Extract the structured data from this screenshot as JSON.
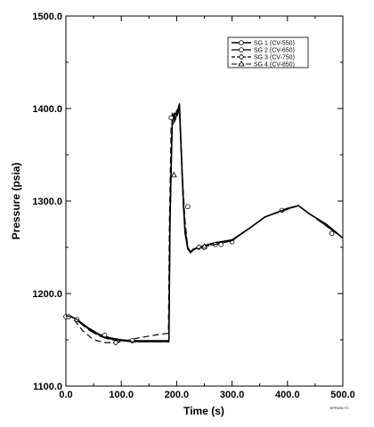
{
  "chart_data": {
    "type": "line",
    "xlabel": "Time (s)",
    "ylabel": "Pressure (psia)",
    "xlim": [
      0,
      500
    ],
    "ylim": [
      1100,
      1500
    ],
    "xticks": [
      "0.0",
      "100.0",
      "200.0",
      "300.0",
      "400.0",
      "500.0"
    ],
    "xtick_values": [
      0,
      100,
      200,
      300,
      400,
      500
    ],
    "yticks": [
      "1100.0",
      "1200.0",
      "1300.0",
      "1400.0",
      "1500.0"
    ],
    "ytick_values": [
      1100,
      1200,
      1300,
      1400,
      1500
    ],
    "grid": false,
    "legend_position": "top-right",
    "figure_id": "EPRI/98 TC",
    "series": [
      {
        "name": "SG 1 (CV-550)",
        "line_style": "solid",
        "line_width": 1.6,
        "marker": "circle",
        "x": [
          0,
          10,
          20,
          40,
          60,
          80,
          100,
          120,
          150,
          170,
          186,
          188,
          192,
          196,
          200,
          205,
          210,
          212,
          215,
          220,
          225,
          230,
          240,
          250,
          270,
          300,
          330,
          360,
          400,
          420,
          440,
          470,
          500
        ],
        "y": [
          1175,
          1175,
          1172,
          1163,
          1156,
          1152,
          1150,
          1149,
          1149,
          1149,
          1149,
          1280,
          1385,
          1395,
          1393,
          1405,
          1330,
          1300,
          1270,
          1250,
          1245,
          1248,
          1250,
          1252,
          1255,
          1258,
          1270,
          1283,
          1292,
          1295,
          1286,
          1275,
          1260
        ],
        "markers_x": [
          0,
          20,
          70,
          120,
          220,
          250,
          280,
          300,
          390,
          480
        ],
        "markers_y": [
          1175,
          1172,
          1155,
          1149,
          1294,
          1250,
          1253,
          1256,
          1290,
          1265
        ]
      },
      {
        "name": "SG 2 (CV-650)",
        "line_style": "solid",
        "line_width": 1.2,
        "marker": "circle",
        "x": [
          0,
          10,
          20,
          40,
          60,
          80,
          100,
          120,
          150,
          170,
          186,
          188,
          192,
          196,
          200,
          205,
          210,
          212,
          215,
          220,
          225,
          230,
          240,
          250,
          270,
          300,
          330,
          360,
          400,
          420,
          440,
          470,
          500
        ],
        "y": [
          1176,
          1175,
          1172,
          1162,
          1155,
          1151,
          1149,
          1148,
          1148,
          1148,
          1148,
          1270,
          1395,
          1388,
          1398,
          1400,
          1325,
          1295,
          1265,
          1248,
          1244,
          1247,
          1250,
          1252,
          1255,
          1258,
          1270,
          1283,
          1292,
          1295,
          1286,
          1275,
          1260
        ],
        "markers_x": [
          5,
          190,
          270
        ],
        "markers_y": [
          1175,
          1390,
          1253
        ]
      },
      {
        "name": "SG 3 (CV-750)",
        "line_style": "dashed",
        "line_width": 1.2,
        "marker": "diamond",
        "x": [
          0,
          10,
          20,
          30,
          50,
          70,
          90,
          110,
          130,
          150,
          170,
          185,
          187,
          190,
          195,
          200,
          205,
          210,
          215,
          220,
          225,
          230,
          260,
          300,
          360,
          420,
          500
        ],
        "y": [
          1176,
          1175,
          1168,
          1160,
          1150,
          1147,
          1147,
          1149,
          1152,
          1154,
          1156,
          1157,
          1280,
          1380,
          1385,
          1390,
          1400,
          1330,
          1280,
          1250,
          1245,
          1248,
          1252,
          1257,
          1283,
          1295,
          1260
        ],
        "markers_x": [
          90,
          240
        ],
        "markers_y": [
          1147,
          1250
        ]
      },
      {
        "name": "SG 4 (CV-850)",
        "line_style": "long-dashed",
        "line_width": 1.0,
        "marker": "triangle",
        "x": [
          0,
          10,
          20,
          40,
          60,
          80,
          100,
          120,
          150,
          170,
          186,
          188,
          192,
          196,
          200,
          205,
          210,
          215,
          220,
          225,
          230,
          260,
          300,
          360,
          420,
          500
        ],
        "y": [
          1176,
          1175,
          1171,
          1161,
          1154,
          1150,
          1149,
          1148,
          1148,
          1148,
          1148,
          1275,
          1388,
          1386,
          1392,
          1395,
          1325,
          1268,
          1249,
          1244,
          1247,
          1252,
          1257,
          1283,
          1295,
          1260
        ],
        "markers_x": [
          195,
          250
        ],
        "markers_y": [
          1328,
          1251
        ]
      }
    ]
  }
}
